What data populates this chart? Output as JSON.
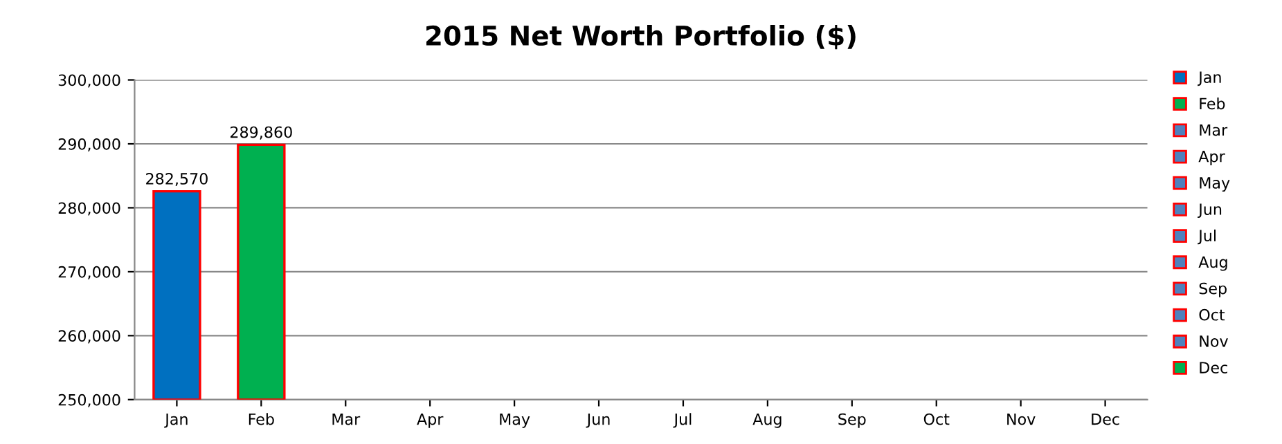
{
  "chart_data": {
    "type": "bar",
    "title": "2015 Net Worth Portfolio ($)",
    "categories": [
      "Jan",
      "Feb",
      "Mar",
      "Apr",
      "May",
      "Jun",
      "Jul",
      "Aug",
      "Sep",
      "Oct",
      "Nov",
      "Dec"
    ],
    "series": [
      {
        "name": "Jan",
        "color": "#0070c0",
        "values": [
          282570,
          null,
          null,
          null,
          null,
          null,
          null,
          null,
          null,
          null,
          null,
          null
        ],
        "value_labels": [
          "282,570",
          null,
          null,
          null,
          null,
          null,
          null,
          null,
          null,
          null,
          null,
          null
        ]
      },
      {
        "name": "Feb",
        "color": "#00b050",
        "values": [
          null,
          289860,
          null,
          null,
          null,
          null,
          null,
          null,
          null,
          null,
          null,
          null
        ],
        "value_labels": [
          null,
          "289,860",
          null,
          null,
          null,
          null,
          null,
          null,
          null,
          null,
          null,
          null
        ]
      },
      {
        "name": "Mar",
        "color": "#4f81bd",
        "values": [
          null,
          null,
          null,
          null,
          null,
          null,
          null,
          null,
          null,
          null,
          null,
          null
        ]
      },
      {
        "name": "Apr",
        "color": "#4f81bd",
        "values": [
          null,
          null,
          null,
          null,
          null,
          null,
          null,
          null,
          null,
          null,
          null,
          null
        ]
      },
      {
        "name": "May",
        "color": "#4f81bd",
        "values": [
          null,
          null,
          null,
          null,
          null,
          null,
          null,
          null,
          null,
          null,
          null,
          null
        ]
      },
      {
        "name": "Jun",
        "color": "#4f81bd",
        "values": [
          null,
          null,
          null,
          null,
          null,
          null,
          null,
          null,
          null,
          null,
          null,
          null
        ]
      },
      {
        "name": "Jul",
        "color": "#4f81bd",
        "values": [
          null,
          null,
          null,
          null,
          null,
          null,
          null,
          null,
          null,
          null,
          null,
          null
        ]
      },
      {
        "name": "Aug",
        "color": "#4f81bd",
        "values": [
          null,
          null,
          null,
          null,
          null,
          null,
          null,
          null,
          null,
          null,
          null,
          null
        ]
      },
      {
        "name": "Sep",
        "color": "#4f81bd",
        "values": [
          null,
          null,
          null,
          null,
          null,
          null,
          null,
          null,
          null,
          null,
          null,
          null
        ]
      },
      {
        "name": "Oct",
        "color": "#4f81bd",
        "values": [
          null,
          null,
          null,
          null,
          null,
          null,
          null,
          null,
          null,
          null,
          null,
          null
        ]
      },
      {
        "name": "Nov",
        "color": "#4f81bd",
        "values": [
          null,
          null,
          null,
          null,
          null,
          null,
          null,
          null,
          null,
          null,
          null,
          null
        ]
      },
      {
        "name": "Dec",
        "color": "#00b050",
        "values": [
          null,
          null,
          null,
          null,
          null,
          null,
          null,
          null,
          null,
          null,
          null,
          null
        ]
      }
    ],
    "ylim": [
      250000,
      300000
    ],
    "yticks": [
      {
        "value": 250000,
        "label": "250,000"
      },
      {
        "value": 260000,
        "label": "260,000"
      },
      {
        "value": 270000,
        "label": "270,000"
      },
      {
        "value": 280000,
        "label": "280,000"
      },
      {
        "value": 290000,
        "label": "290,000"
      },
      {
        "value": 300000,
        "label": "300,000"
      }
    ],
    "grid": "y",
    "legend": "right"
  }
}
